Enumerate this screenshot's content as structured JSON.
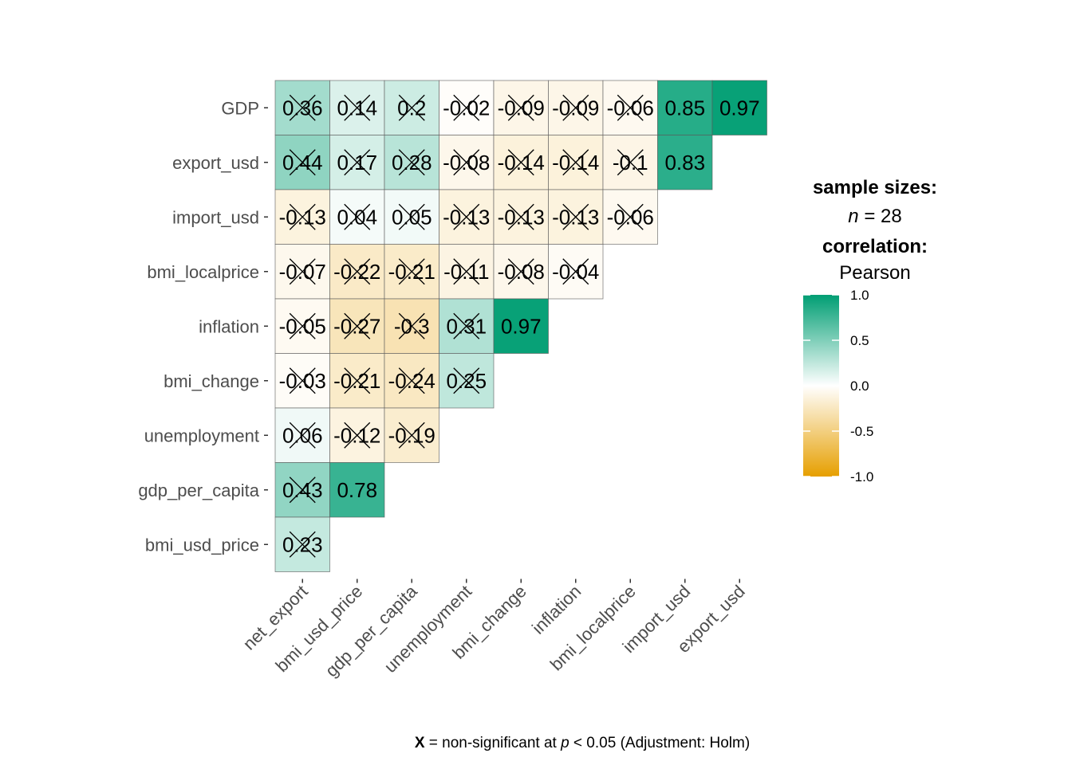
{
  "chart_data": {
    "type": "heatmap",
    "x_categories": [
      "net_export",
      "bmi_usd_price",
      "gdp_per_capita",
      "unemployment",
      "bmi_change",
      "inflation",
      "bmi_localprice",
      "import_usd",
      "export_usd"
    ],
    "y_categories": [
      "GDP",
      "export_usd",
      "import_usd",
      "bmi_localprice",
      "inflation",
      "bmi_change",
      "unemployment",
      "gdp_per_capita",
      "bmi_usd_price"
    ],
    "values": [
      [
        0.36,
        0.14,
        0.2,
        -0.02,
        -0.09,
        -0.09,
        -0.06,
        0.85,
        0.97
      ],
      [
        0.44,
        0.17,
        0.28,
        -0.08,
        -0.14,
        -0.14,
        -0.1,
        0.83
      ],
      [
        -0.13,
        0.04,
        0.05,
        -0.13,
        -0.13,
        -0.13,
        -0.06
      ],
      [
        -0.07,
        -0.22,
        -0.21,
        -0.11,
        -0.08,
        -0.04
      ],
      [
        -0.05,
        -0.27,
        -0.3,
        0.31,
        0.97
      ],
      [
        -0.03,
        -0.21,
        -0.24,
        0.25
      ],
      [
        0.06,
        -0.12,
        -0.19
      ],
      [
        0.43,
        0.78
      ],
      [
        0.23
      ]
    ],
    "labels": [
      [
        "0.36",
        "0.14",
        "0.2",
        "-0.02",
        "-0.09",
        "-0.09",
        "-0.06",
        "0.85",
        "0.97"
      ],
      [
        "0.44",
        "0.17",
        "0.28",
        "-0.08",
        "-0.14",
        "-0.14",
        "-0.1",
        "0.83"
      ],
      [
        "-0.13",
        "0.04",
        "0.05",
        "-0.13",
        "-0.13",
        "-0.13",
        "-0.06"
      ],
      [
        "-0.07",
        "-0.22",
        "-0.21",
        "-0.11",
        "-0.08",
        "-0.04"
      ],
      [
        "-0.05",
        "-0.27",
        "-0.3",
        "0.31",
        "0.97"
      ],
      [
        "-0.03",
        "-0.21",
        "-0.24",
        "0.25"
      ],
      [
        "0.06",
        "-0.12",
        "-0.19"
      ],
      [
        "0.43",
        "0.78"
      ],
      [
        "0.23"
      ]
    ],
    "significant": [
      [
        false,
        false,
        false,
        false,
        false,
        false,
        false,
        true,
        true
      ],
      [
        false,
        false,
        false,
        false,
        false,
        false,
        false,
        true
      ],
      [
        false,
        false,
        false,
        false,
        false,
        false,
        false
      ],
      [
        false,
        false,
        false,
        false,
        false,
        false
      ],
      [
        false,
        false,
        false,
        false,
        true
      ],
      [
        false,
        false,
        false,
        false
      ],
      [
        false,
        false,
        false
      ],
      [
        false,
        true
      ],
      [
        false
      ]
    ],
    "color_scale": {
      "low": "#E69F00",
      "mid": "#FFFFFF",
      "high": "#009E73",
      "limits": [
        -1.0,
        1.0
      ]
    },
    "legend": {
      "title_sample": "sample sizes:",
      "n_symbol": "n",
      "n_text": " = 28",
      "title_correlation": "correlation:",
      "method": "Pearson",
      "ticks": [
        "1.0",
        "0.5",
        "0.0",
        "-0.5",
        "-1.0"
      ],
      "tick_values": [
        1.0,
        0.5,
        0.0,
        -0.5,
        -1.0
      ],
      "placement": "right"
    },
    "caption": {
      "symbol": "X",
      "text1": " = non-significant at ",
      "p": "p",
      "text2": " < 0.05 (Adjustment: Holm)"
    }
  }
}
